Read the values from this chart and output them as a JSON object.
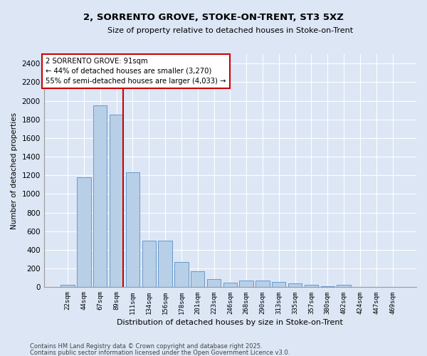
{
  "title1": "2, SORRENTO GROVE, STOKE-ON-TRENT, ST3 5XZ",
  "title2": "Size of property relative to detached houses in Stoke-on-Trent",
  "xlabel": "Distribution of detached houses by size in Stoke-on-Trent",
  "ylabel": "Number of detached properties",
  "categories": [
    "22sqm",
    "44sqm",
    "67sqm",
    "89sqm",
    "111sqm",
    "134sqm",
    "156sqm",
    "178sqm",
    "201sqm",
    "223sqm",
    "246sqm",
    "268sqm",
    "290sqm",
    "313sqm",
    "335sqm",
    "357sqm",
    "380sqm",
    "402sqm",
    "424sqm",
    "447sqm",
    "469sqm"
  ],
  "values": [
    30,
    1180,
    1950,
    1850,
    1230,
    500,
    500,
    270,
    170,
    85,
    50,
    70,
    75,
    55,
    45,
    25,
    10,
    25,
    5,
    5,
    5
  ],
  "bar_color": "#b8cfe8",
  "bar_edge_color": "#6699cc",
  "vline_x_index": 3,
  "vline_color": "#cc0000",
  "annotation_text": "2 SORRENTO GROVE: 91sqm\n← 44% of detached houses are smaller (3,270)\n55% of semi-detached houses are larger (4,033) →",
  "annotation_box_facecolor": "#ffffff",
  "annotation_box_edgecolor": "#cc0000",
  "background_color": "#dce6f5",
  "grid_color": "#ffffff",
  "ylim": [
    0,
    2500
  ],
  "yticks": [
    0,
    200,
    400,
    600,
    800,
    1000,
    1200,
    1400,
    1600,
    1800,
    2000,
    2200,
    2400
  ],
  "footer1": "Contains HM Land Registry data © Crown copyright and database right 2025.",
  "footer2": "Contains public sector information licensed under the Open Government Licence v3.0."
}
